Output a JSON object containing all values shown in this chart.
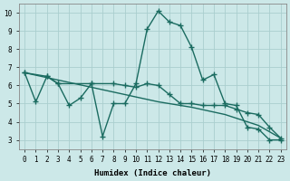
{
  "xlabel": "Humidex (Indice chaleur)",
  "background_color": "#cce8e8",
  "grid_color": "#aacece",
  "line_color": "#1a6b60",
  "xlim_min": -0.5,
  "xlim_max": 23.5,
  "ylim_min": 2.5,
  "ylim_max": 10.5,
  "yticks": [
    3,
    4,
    5,
    6,
    7,
    8,
    9,
    10
  ],
  "curve1_x": [
    0,
    1,
    2,
    3,
    4,
    5,
    6,
    7,
    8,
    9,
    10,
    11,
    12,
    13,
    14,
    15,
    16,
    17,
    18,
    19,
    20,
    21,
    22,
    23
  ],
  "curve1_y": [
    6.7,
    5.1,
    6.5,
    6.1,
    4.9,
    5.3,
    6.1,
    3.2,
    5.0,
    5.0,
    6.1,
    9.1,
    10.1,
    9.5,
    9.3,
    8.1,
    6.3,
    6.6,
    5.0,
    4.9,
    3.7,
    3.6,
    3.0,
    3.0
  ],
  "curve2_x": [
    0,
    2,
    3,
    6,
    8,
    9,
    10,
    11,
    12,
    13,
    14,
    15,
    16,
    17,
    18,
    19,
    20,
    21,
    22,
    23
  ],
  "curve2_y": [
    6.7,
    6.5,
    6.1,
    6.1,
    6.1,
    6.0,
    5.9,
    6.1,
    6.0,
    5.5,
    5.0,
    5.0,
    4.9,
    4.9,
    4.9,
    4.7,
    4.5,
    4.4,
    3.7,
    3.1
  ],
  "curve3_x": [
    0,
    3,
    6,
    9,
    12,
    15,
    18,
    21,
    23
  ],
  "curve3_y": [
    6.7,
    6.3,
    5.9,
    5.5,
    5.1,
    4.8,
    4.4,
    3.8,
    3.1
  ],
  "marker_size": 4,
  "line_width": 1.0
}
